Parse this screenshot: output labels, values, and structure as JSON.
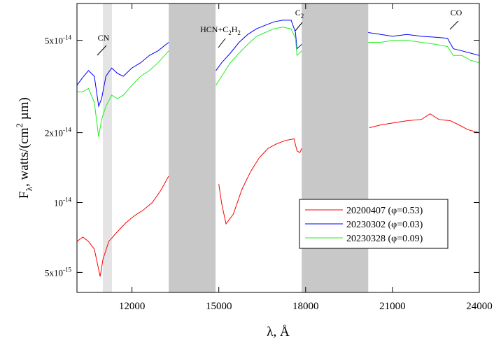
{
  "chart_data": {
    "type": "line",
    "x_label": "λ, Å",
    "y_label": [
      "F",
      "λ",
      ", watts/(cm",
      "2",
      " µm)"
    ],
    "log_y": true,
    "xlim": [
      10100,
      24000
    ],
    "xticks": [
      12000,
      15000,
      18000,
      21000,
      24000
    ],
    "ylim": [
      4.1e-15,
      7.2e-14
    ],
    "yticks": [
      {
        "value": 5e-15,
        "label": "5x10",
        "exponent": "-15"
      },
      {
        "value": 1e-14,
        "label": "10",
        "exponent": "-14"
      },
      {
        "value": 2e-14,
        "label": "2x10",
        "exponent": "-14"
      },
      {
        "value": 5e-14,
        "label": "5x10",
        "exponent": "-14"
      }
    ],
    "legend": "lower right",
    "shaded_regions": [
      {
        "range": [
          10995,
          11310
        ],
        "color": "#e4e4e4"
      },
      {
        "range": [
          13270,
          14890
        ],
        "color": "#c8c8c8"
      },
      {
        "range": [
          17865,
          20163
        ],
        "color": "#c8c8c8"
      }
    ],
    "annotations": [
      {
        "text": [
          "CN"
        ]
      },
      {
        "text": [
          "HCN+C",
          "2",
          "H",
          "2"
        ]
      },
      {
        "text": [
          "C",
          "2"
        ]
      },
      {
        "text": [
          "CO"
        ]
      }
    ],
    "series": [
      {
        "name": "20200407 (φ=0.53)",
        "color": "#ff0000",
        "x": [
          10100,
          10300,
          10500,
          10700,
          10800,
          10900,
          11000,
          11200,
          11500,
          11800,
          12100,
          12400,
          12700,
          13000,
          13270,
          14200,
          15000,
          15100,
          15250,
          15500,
          15800,
          16100,
          16400,
          16700,
          17000,
          17300,
          17600,
          17700,
          17800,
          17865,
          19000,
          20200,
          20600,
          21000,
          21500,
          22000,
          22300,
          22600,
          23000,
          23300,
          23600,
          24000
        ],
        "values": [
          6.8e-15,
          7.1e-15,
          6.8e-15,
          6.3e-15,
          5.5e-15,
          4.8e-15,
          5.7e-15,
          6.8e-15,
          7.5e-15,
          8.2e-15,
          8.8e-15,
          9.3e-15,
          1e-14,
          1.13e-14,
          1.3e-14,
          null,
          1.2e-14,
          9.9e-15,
          8.1e-15,
          8.9e-15,
          1.14e-14,
          1.36e-14,
          1.56e-14,
          1.71e-14,
          1.79e-14,
          1.85e-14,
          1.88e-14,
          1.67e-14,
          1.64e-14,
          1.71e-14,
          null,
          2.1e-14,
          2.16e-14,
          2.2e-14,
          2.25e-14,
          2.28e-14,
          2.41e-14,
          2.28e-14,
          2.25e-14,
          2.16e-14,
          2.06e-14,
          2e-14
        ]
      },
      {
        "name": "20230302 (φ=0.03)",
        "color": "#0000ff",
        "x": [
          10100,
          10300,
          10500,
          10700,
          10850,
          10950,
          11100,
          11300,
          11500,
          11700,
          12000,
          12300,
          12600,
          12900,
          13270,
          14000,
          14900,
          15100,
          15400,
          15700,
          16000,
          16300,
          16600,
          16900,
          17200,
          17500,
          17650,
          17700,
          17865,
          19000,
          20163,
          20600,
          21000,
          21500,
          22000,
          22500,
          22900,
          23100,
          23400,
          23700,
          24000
        ],
        "values": [
          3.2e-14,
          3.46e-14,
          3.7e-14,
          3.5e-14,
          2.6e-14,
          2.8e-14,
          3.5e-14,
          3.8e-14,
          3.6e-14,
          3.5e-14,
          3.8e-14,
          4e-14,
          4.3e-14,
          4.5e-14,
          4.9e-14,
          null,
          3.7e-14,
          4e-14,
          4.4e-14,
          4.9e-14,
          5.3e-14,
          5.6e-14,
          5.8e-14,
          6e-14,
          6.1e-14,
          6.1e-14,
          5.4e-14,
          4.6e-14,
          4.8e-14,
          null,
          5.4e-14,
          5.3e-14,
          5.2e-14,
          5.3e-14,
          5.2e-14,
          5.15e-14,
          5.1e-14,
          4.6e-14,
          4.5e-14,
          4.4e-14,
          4.3e-14
        ]
      },
      {
        "name": "20230328 (φ=0.09)",
        "color": "#22ee22",
        "x": [
          10100,
          10300,
          10500,
          10700,
          10850,
          10950,
          11100,
          11300,
          11500,
          11700,
          12000,
          12300,
          12600,
          12900,
          13270,
          14000,
          14900,
          15100,
          15400,
          15700,
          16000,
          16300,
          16600,
          16900,
          17200,
          17500,
          17650,
          17700,
          17865,
          19000,
          20163,
          20600,
          21000,
          21500,
          22000,
          22500,
          22900,
          23100,
          23400,
          23700,
          24000
        ],
        "values": [
          3e-14,
          3e-14,
          3.1e-14,
          2.7e-14,
          1.92e-14,
          2.28e-14,
          2.6e-14,
          2.9e-14,
          2.8e-14,
          2.9e-14,
          3.2e-14,
          3.5e-14,
          3.7e-14,
          4e-14,
          4.5e-14,
          null,
          3.2e-14,
          3.5e-14,
          4e-14,
          4.4e-14,
          4.8e-14,
          5.2e-14,
          5.4e-14,
          5.6e-14,
          5.7e-14,
          5.6e-14,
          5.1e-14,
          4.3e-14,
          4.5e-14,
          null,
          4.9e-14,
          4.9e-14,
          5e-14,
          5e-14,
          4.9e-14,
          4.8e-14,
          4.7e-14,
          4.3e-14,
          4.3e-14,
          4.1e-14,
          4e-14
        ]
      }
    ]
  }
}
